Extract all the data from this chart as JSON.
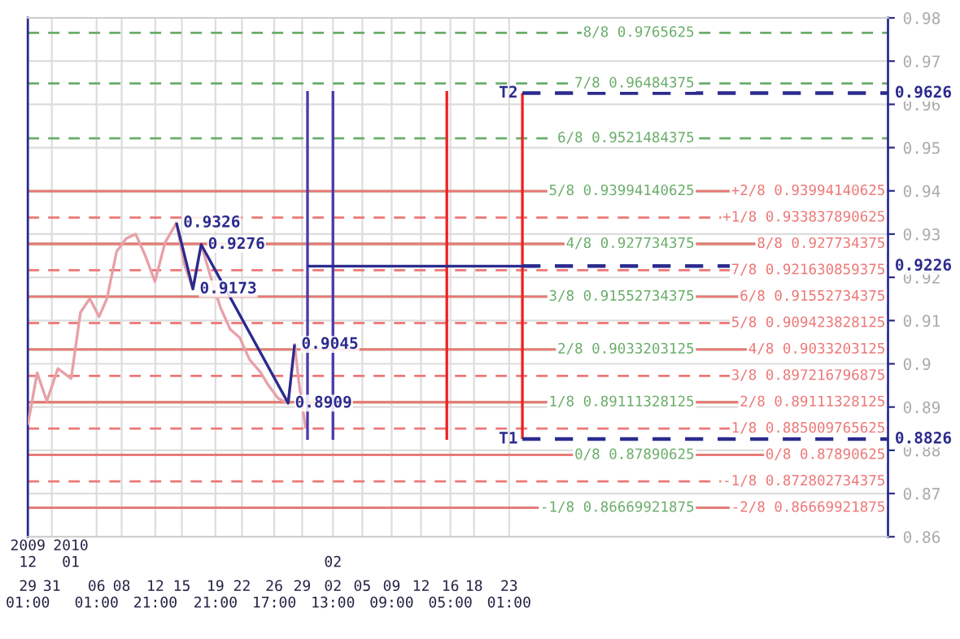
{
  "chart_data": {
    "type": "line",
    "xlim": [
      "2009-12-29T01:00",
      "2010-04-08T03:00"
    ],
    "xticks": [
      {
        "value": "2009-12-29T01:00",
        "label": "29\n01:00"
      },
      {
        "value": "2009-12-31T20:00",
        "label": "31\n"
      },
      {
        "value": "2010-01-06T01:00",
        "label": "06\n01:00"
      },
      {
        "value": "2010-01-08T23:00",
        "label": "08\n"
      },
      {
        "value": "2010-01-12T21:00",
        "label": "12\n21:00"
      },
      {
        "value": "2010-01-15T23:00",
        "label": "15\n"
      },
      {
        "value": "2010-01-19T21:00",
        "label": "19\n21:00"
      },
      {
        "value": "2010-01-22T23:00",
        "label": "22\n"
      },
      {
        "value": "2010-01-26T17:00",
        "label": "26\n17:00"
      },
      {
        "value": "2010-01-29T23:00",
        "label": "29\n"
      },
      {
        "value": "2010-02-02T13:00",
        "label": "02\n13:00"
      },
      {
        "value": "2010-02-05T23:00",
        "label": "05\n"
      },
      {
        "value": "2010-02-09T09:00",
        "label": "09\n09:00"
      },
      {
        "value": "2010-02-12T19:00",
        "label": "12\n"
      },
      {
        "value": "2010-02-16T05:00",
        "label": "16\n05:00"
      },
      {
        "value": "2010-02-18T23:00",
        "label": "18\n"
      },
      {
        "value": "2010-02-23T01:00",
        "label": "23\n01:00"
      }
    ],
    "x2lim": [
      "2009-12-29T01:00",
      "2010-04-08T03:00"
    ],
    "x2ticks": [
      {
        "value": "2009-12-29T01:00",
        "label": "2009\n12"
      },
      {
        "value": "2010-01-03T01:00",
        "label": "2010\n01"
      },
      {
        "value": "2010-02-02T13:00",
        "label": "\n02"
      }
    ],
    "ylim": [
      0.86,
      0.98
    ],
    "yticks": [
      0.86,
      0.87,
      0.88,
      0.89,
      0.9,
      0.91,
      0.92,
      0.93,
      0.94,
      0.95,
      0.96,
      0.97,
      0.98
    ],
    "grid": true,
    "marker": "none",
    "series": [
      {
        "color": "#e8a0a8",
        "x": [
          "2009-12-29T01:00",
          "2009-12-30T03:00",
          "2009-12-31T06:00",
          "2010-01-01T13:00",
          "2010-01-03T02:00",
          "2010-01-04T04:00",
          "2010-01-05T06:00",
          "2010-01-06T08:00",
          "2010-01-07T06:00",
          "2010-01-08T09:00",
          "2010-01-09T12:00",
          "2010-01-10T14:00",
          "2010-01-11T17:00",
          "2010-01-12T20:00",
          "2010-01-14T00:00",
          "2010-01-15T08:00",
          "2010-01-16T06:00",
          "2010-01-17T06:00",
          "2010-01-18T05:00",
          "2010-01-19T08:00",
          "2010-01-20T11:00",
          "2010-01-21T14:00",
          "2010-01-22T17:00",
          "2010-01-23T20:00",
          "2010-01-25T03:00",
          "2010-01-26T01:00",
          "2010-01-27T04:00",
          "2010-01-28T08:00",
          "2010-01-29T02:00",
          "2010-01-29T15:00",
          "2010-01-30T09:00"
        ],
        "values": [
          0.8859,
          0.8979,
          0.8914,
          0.8989,
          0.8966,
          0.9119,
          0.9151,
          0.9109,
          0.9151,
          0.926,
          0.929,
          0.93,
          0.925,
          0.919,
          0.928,
          0.9326,
          0.923,
          0.9173,
          0.9276,
          0.92,
          0.913,
          0.908,
          0.906,
          0.901,
          0.898,
          0.895,
          0.892,
          0.8909,
          0.9045,
          0.895,
          0.885
        ]
      },
      {
        "color": "#2b2b8f",
        "x": [
          "2010-01-15T08:00",
          "2010-01-17T06:00",
          "2010-01-18T05:00",
          "2010-01-28T08:00",
          "2010-01-29T02:00"
        ],
        "values": [
          0.9326,
          0.9173,
          0.9276,
          0.8909,
          0.9045
        ],
        "value_labels": [
          "0.9326",
          "0.9173",
          "0.9276",
          "0.8909",
          "0.9045"
        ]
      },
      {
        "color": "#4a3aa8",
        "x": [
          "2010-01-30T14:00",
          "2010-01-30T14:00"
        ],
        "values": [
          0.9631,
          0.8824
        ]
      },
      {
        "color": "#4a3aa8",
        "x": [
          "2010-02-02T13:00",
          "2010-02-02T13:00"
        ],
        "values": [
          0.9631,
          0.8824
        ]
      },
      {
        "color": "#ee2222",
        "x": [
          "2010-02-15T19:00",
          "2010-02-15T19:00"
        ],
        "values": [
          0.9631,
          0.8824
        ]
      },
      {
        "color": "#ee2222",
        "x": [
          "2010-02-24T14:00",
          "2010-02-24T14:00"
        ],
        "values": [
          0.9626,
          0.8826
        ]
      },
      {
        "color": "#2b2b8f",
        "x": [
          "2010-01-30T14:00",
          "2010-02-24T14:00"
        ],
        "values": [
          0.9226,
          0.9226
        ]
      },
      {
        "color": "#2b2b8f",
        "line_style": "dashed",
        "x": [
          "2010-02-24T14:00",
          "2010-04-08T03:00"
        ],
        "values": [
          0.9226,
          0.9226
        ],
        "value_labels": [
          null,
          "0.9226"
        ]
      },
      {
        "name": "T2",
        "color": "#2b2b8f",
        "line_style": "dashed",
        "x": [
          "2010-02-24T14:00",
          "2010-04-08T03:00"
        ],
        "values": [
          0.9626,
          0.9626
        ],
        "value_labels": [
          null,
          "0.9626"
        ]
      },
      {
        "name": "T1",
        "color": "#2b2b8f",
        "line_style": "dashed",
        "x": [
          "2010-02-24T14:00",
          "2010-04-08T03:00"
        ],
        "values": [
          0.8826,
          0.8826
        ],
        "value_labels": [
          null,
          "0.8826"
        ]
      }
    ],
    "ref_lines": [
      {
        "axis": "y",
        "value": 0.9765625,
        "label": "8/8 0.9765625",
        "color": "#6aad6a",
        "line_style": "dashed"
      },
      {
        "axis": "y",
        "value": 0.96484375,
        "label": "7/8 0.96484375",
        "color": "#6aad6a",
        "line_style": "dashed"
      },
      {
        "axis": "y",
        "value": 0.9521484375,
        "label": "6/8 0.9521484375",
        "color": "#6aad6a",
        "line_style": "dashed"
      },
      {
        "axis": "y",
        "value": 0.93994140625,
        "label": "5/8 0.93994140625",
        "color": "#6aad6a",
        "line_style": "solid"
      },
      {
        "axis": "y",
        "value": 0.927734375,
        "label": "4/8 0.927734375",
        "color": "#6aad6a",
        "line_style": "solid"
      },
      {
        "axis": "y",
        "value": 0.91552734375,
        "label": "3/8 0.91552734375",
        "color": "#6aad6a",
        "line_style": "solid"
      },
      {
        "axis": "y",
        "value": 0.9033203125,
        "label": "2/8 0.9033203125",
        "color": "#6aad6a",
        "line_style": "solid"
      },
      {
        "axis": "y",
        "value": 0.89111328125,
        "label": "1/8 0.89111328125",
        "color": "#6aad6a",
        "line_style": "solid"
      },
      {
        "axis": "y",
        "value": 0.87890625,
        "label": "0/8 0.87890625",
        "color": "#6aad6a",
        "line_style": "solid"
      },
      {
        "axis": "y",
        "value": 0.86669921875,
        "label": "-1/8 0.86669921875",
        "color": "#6aad6a",
        "line_style": "solid"
      },
      {
        "axis": "y",
        "value": 0.93994140625,
        "label": "+2/8 0.93994140625",
        "color": "#ee7777",
        "line_style": "solid"
      },
      {
        "axis": "y",
        "value": 0.933837890625,
        "label": "+1/8 0.933837890625",
        "color": "#ee7777",
        "line_style": "dashed"
      },
      {
        "axis": "y",
        "value": 0.927734375,
        "label": "8/8 0.927734375",
        "color": "#ee7777",
        "line_style": "solid"
      },
      {
        "axis": "y",
        "value": 0.921630859375,
        "label": "7/8 0.921630859375",
        "color": "#ee7777",
        "line_style": "dashed"
      },
      {
        "axis": "y",
        "value": 0.91552734375,
        "label": "6/8 0.91552734375",
        "color": "#ee7777",
        "line_style": "solid"
      },
      {
        "axis": "y",
        "value": 0.909423828125,
        "label": "5/8 0.909423828125",
        "color": "#ee7777",
        "line_style": "dashed"
      },
      {
        "axis": "y",
        "value": 0.9033203125,
        "label": "4/8 0.9033203125",
        "color": "#ee7777",
        "line_style": "solid"
      },
      {
        "axis": "y",
        "value": 0.897216796875,
        "label": "3/8 0.897216796875",
        "color": "#ee7777",
        "line_style": "dashed"
      },
      {
        "axis": "y",
        "value": 0.89111328125,
        "label": "2/8 0.89111328125",
        "color": "#ee7777",
        "line_style": "solid"
      },
      {
        "axis": "y",
        "value": 0.885009765625,
        "label": "1/8 0.885009765625",
        "color": "#ee7777",
        "line_style": "dashed"
      },
      {
        "axis": "y",
        "value": 0.87890625,
        "label": "0/8 0.87890625",
        "color": "#ee7777",
        "line_style": "solid"
      },
      {
        "axis": "y",
        "value": 0.872802734375,
        "label": "-1/8 0.872802734375",
        "color": "#ee7777",
        "line_style": "dashed"
      },
      {
        "axis": "y",
        "value": 0.86669921875,
        "label": "-2/8 0.86669921875",
        "color": "#ee7777",
        "line_style": "solid"
      }
    ]
  }
}
